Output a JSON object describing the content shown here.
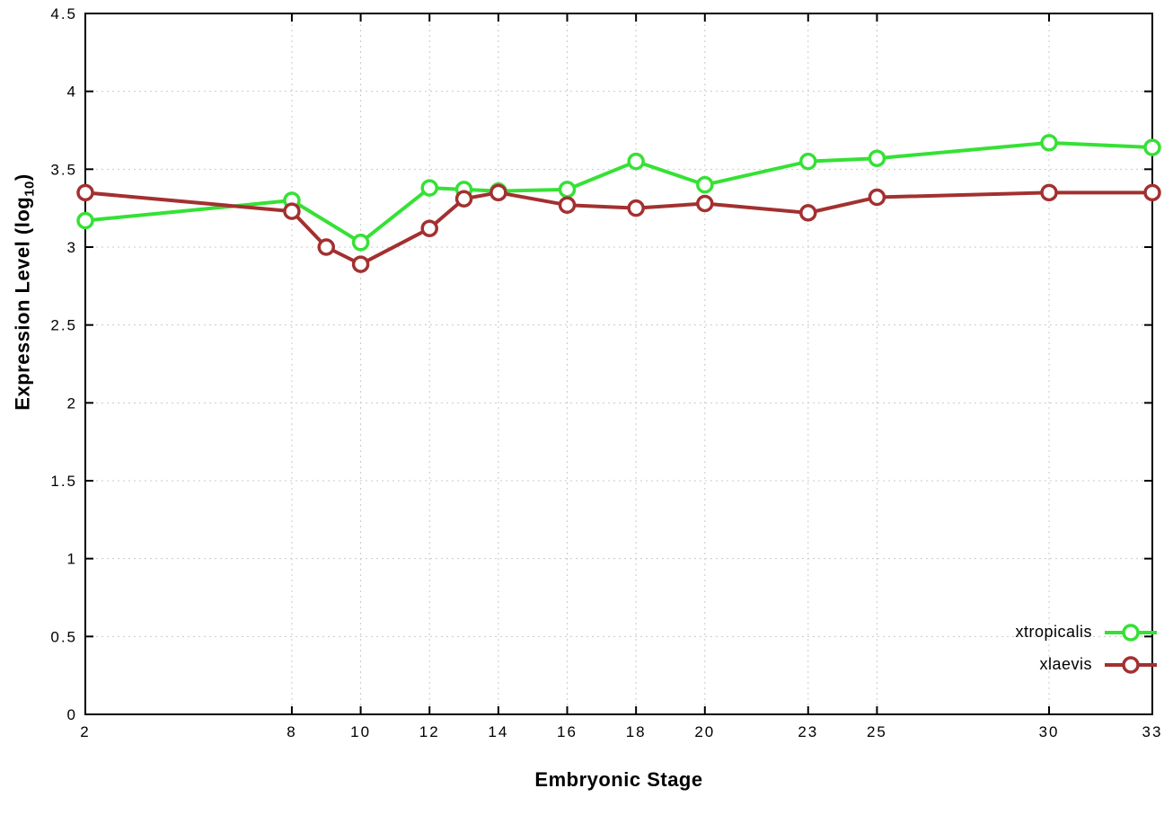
{
  "chart_data": {
    "type": "line",
    "title": "",
    "xlabel": "Embryonic Stage",
    "ylabel": {
      "main": "Expression Level (log",
      "sub": "10",
      "end": ")"
    },
    "xlim": [
      2,
      33
    ],
    "ylim": [
      0,
      4.5
    ],
    "grid": true,
    "legend_position": "bottom-right",
    "xticks": [
      2,
      8,
      10,
      12,
      14,
      16,
      18,
      20,
      23,
      25,
      30,
      33
    ],
    "xtick_labels": [
      "2",
      "8",
      "10",
      "12",
      "14",
      "16",
      "18",
      "20",
      "23",
      "25",
      "30",
      "33"
    ],
    "yticks": [
      0,
      0.5,
      1,
      1.5,
      2,
      2.5,
      3,
      3.5,
      4,
      4.5
    ],
    "ytick_labels": [
      "0",
      "0.5",
      "1",
      "1.5",
      "2",
      "2.5",
      "3",
      "3.5",
      "4",
      "4.5"
    ],
    "series": [
      {
        "name": "xtropicalis",
        "color": "#35e135",
        "marker": "open-circle",
        "x": [
          2,
          8,
          10,
          12,
          13,
          14,
          16,
          18,
          20,
          23,
          25,
          30,
          33
        ],
        "y": [
          3.17,
          3.3,
          3.03,
          3.38,
          3.37,
          3.36,
          3.37,
          3.55,
          3.4,
          3.55,
          3.57,
          3.67,
          3.64
        ]
      },
      {
        "name": "xlaevis",
        "color": "#a33030",
        "marker": "open-circle",
        "x": [
          2,
          8,
          9,
          10,
          12,
          13,
          14,
          16,
          18,
          20,
          23,
          25,
          30,
          33
        ],
        "y": [
          3.35,
          3.23,
          3.0,
          2.89,
          3.12,
          3.31,
          3.35,
          3.27,
          3.25,
          3.28,
          3.22,
          3.32,
          3.35,
          3.35
        ]
      }
    ],
    "style": {
      "grid_color": "#c9c9c9",
      "axis_color": "#000000",
      "background": "#ffffff"
    }
  }
}
